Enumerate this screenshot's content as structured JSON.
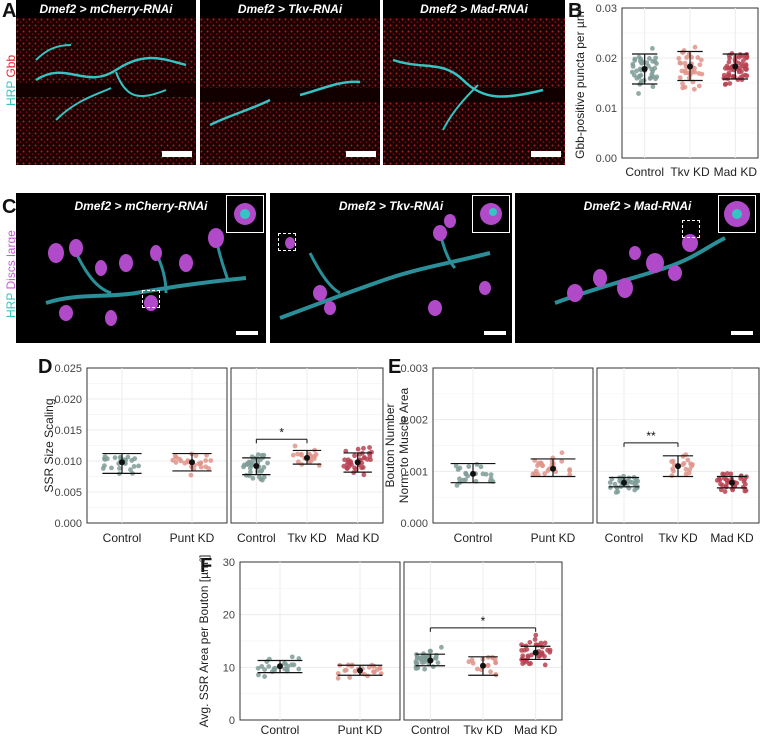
{
  "panels": {
    "A": {
      "letter": "A",
      "stain_hrp": "HRP",
      "stain_other": "Gbb",
      "images": [
        {
          "title": "Dmef2 > mCherry-RNAi"
        },
        {
          "title": "Dmef2 > Tkv-RNAi"
        },
        {
          "title": "Dmef2 > Mad-RNAi"
        }
      ]
    },
    "B": {
      "letter": "B"
    },
    "C": {
      "letter": "C",
      "stain_hrp": "HRP",
      "stain_other": "Discs large",
      "images": [
        {
          "title": "Dmef2 > mCherry-RNAi"
        },
        {
          "title": "Dmef2 > Tkv-RNAi"
        },
        {
          "title": "Dmef2 > Mad-RNAi"
        }
      ]
    },
    "D": {
      "letter": "D"
    },
    "E": {
      "letter": "E"
    },
    "F": {
      "letter": "F"
    }
  },
  "colors": {
    "control": "#7f9c98",
    "tkv": "#e0948a",
    "mad": "#b84352",
    "punt": "#e0948a",
    "hrp": "#36c3c3",
    "gbb": "#e0242a",
    "dlg": "#c65ad8"
  },
  "chart_data": [
    {
      "id": "B",
      "type": "scatter",
      "title": "",
      "ylabel": "Gbb-positive puncta per µm²",
      "ylim": [
        0,
        0.03
      ],
      "yticks": [
        "0.00",
        "0.01",
        "0.02",
        "0.03"
      ],
      "facets": [
        {
          "categories": [
            "Control",
            "Tkv KD",
            "Mad KD"
          ],
          "series": [
            {
              "category": "Control",
              "mean": 0.0178,
              "err_low": 0.0148,
              "err_high": 0.0208,
              "n": 45,
              "spread": 0.0035
            },
            {
              "category": "Tkv KD",
              "mean": 0.0183,
              "err_low": 0.0155,
              "err_high": 0.0213,
              "n": 40,
              "spread": 0.0035
            },
            {
              "category": "Mad KD",
              "mean": 0.0183,
              "err_low": 0.0158,
              "err_high": 0.0208,
              "n": 60,
              "spread": 0.003
            }
          ]
        }
      ]
    },
    {
      "id": "D",
      "type": "scatter",
      "title": "",
      "ylabel": "SSR Size Scaling",
      "ylim": [
        0,
        0.025
      ],
      "yticks": [
        "0.000",
        "0.005",
        "0.010",
        "0.015",
        "0.020",
        "0.025"
      ],
      "facets": [
        {
          "categories": [
            "Control",
            "Punt KD"
          ],
          "series": [
            {
              "category": "Control",
              "mean": 0.0098,
              "err_low": 0.008,
              "err_high": 0.0112,
              "n": 25,
              "spread": 0.0022
            },
            {
              "category": "Punt KD",
              "mean": 0.0098,
              "err_low": 0.0084,
              "err_high": 0.0112,
              "n": 25,
              "spread": 0.0018
            }
          ]
        },
        {
          "categories": [
            "Control",
            "Tkv KD",
            "Mad KD"
          ],
          "series": [
            {
              "category": "Control",
              "mean": 0.0092,
              "err_low": 0.0078,
              "err_high": 0.0105,
              "n": 35,
              "spread": 0.002
            },
            {
              "category": "Tkv KD",
              "mean": 0.0105,
              "err_low": 0.0095,
              "err_high": 0.0117,
              "n": 20,
              "spread": 0.0015
            },
            {
              "category": "Mad KD",
              "mean": 0.0098,
              "err_low": 0.0082,
              "err_high": 0.0113,
              "n": 38,
              "spread": 0.0022
            }
          ],
          "significance": [
            {
              "from": "Control",
              "to": "Tkv KD",
              "label": "*",
              "y": 0.0135
            }
          ]
        }
      ]
    },
    {
      "id": "E",
      "type": "scatter",
      "title": "",
      "ylabel": "Bouton Number\nNorm. to Muscle Area",
      "ylim": [
        0,
        0.003
      ],
      "yticks": [
        "0.000",
        "0.001",
        "0.002",
        "0.003"
      ],
      "facets": [
        {
          "categories": [
            "Control",
            "Punt KD"
          ],
          "series": [
            {
              "category": "Control",
              "mean": 0.00095,
              "err_low": 0.00078,
              "err_high": 0.00115,
              "n": 22,
              "spread": 0.0002
            },
            {
              "category": "Punt KD",
              "mean": 0.00105,
              "err_low": 0.0009,
              "err_high": 0.00124,
              "n": 25,
              "spread": 0.00022
            }
          ]
        },
        {
          "categories": [
            "Control",
            "Tkv KD",
            "Mad KD"
          ],
          "series": [
            {
              "category": "Control",
              "mean": 0.00078,
              "err_low": 0.0007,
              "err_high": 0.00088,
              "n": 35,
              "spread": 0.00015
            },
            {
              "category": "Tkv KD",
              "mean": 0.0011,
              "err_low": 0.0009,
              "err_high": 0.0013,
              "n": 18,
              "spread": 0.00025
            },
            {
              "category": "Mad KD",
              "mean": 0.00078,
              "err_low": 0.00068,
              "err_high": 0.0009,
              "n": 36,
              "spread": 0.0002
            }
          ],
          "significance": [
            {
              "from": "Control",
              "to": "Tkv KD",
              "label": "**",
              "y": 0.00155
            }
          ]
        }
      ]
    },
    {
      "id": "F",
      "type": "scatter",
      "title": "",
      "ylabel": "Avg. SSR Area per Bouton [µm²]",
      "ylim": [
        0,
        30
      ],
      "yticks": [
        "0",
        "10",
        "20",
        "30"
      ],
      "facets": [
        {
          "categories": [
            "Control",
            "Punt KD"
          ],
          "series": [
            {
              "category": "Control",
              "mean": 10.2,
              "err_low": 9.0,
              "err_high": 11.3,
              "n": 25,
              "spread": 1.8
            },
            {
              "category": "Punt KD",
              "mean": 9.4,
              "err_low": 8.5,
              "err_high": 10.4,
              "n": 25,
              "spread": 1.5
            }
          ]
        },
        {
          "categories": [
            "Control",
            "Tkv KD",
            "Mad KD"
          ],
          "series": [
            {
              "category": "Control",
              "mean": 11.3,
              "err_low": 10.3,
              "err_high": 12.5,
              "n": 38,
              "spread": 2.0
            },
            {
              "category": "Tkv KD",
              "mean": 10.3,
              "err_low": 8.5,
              "err_high": 12.0,
              "n": 18,
              "spread": 2.2
            },
            {
              "category": "Mad KD",
              "mean": 12.8,
              "err_low": 11.5,
              "err_high": 14.0,
              "n": 40,
              "spread": 2.3
            }
          ],
          "significance": [
            {
              "from": "Control",
              "to": "Mad KD",
              "label": "*",
              "y": 17.5
            }
          ]
        }
      ]
    }
  ]
}
